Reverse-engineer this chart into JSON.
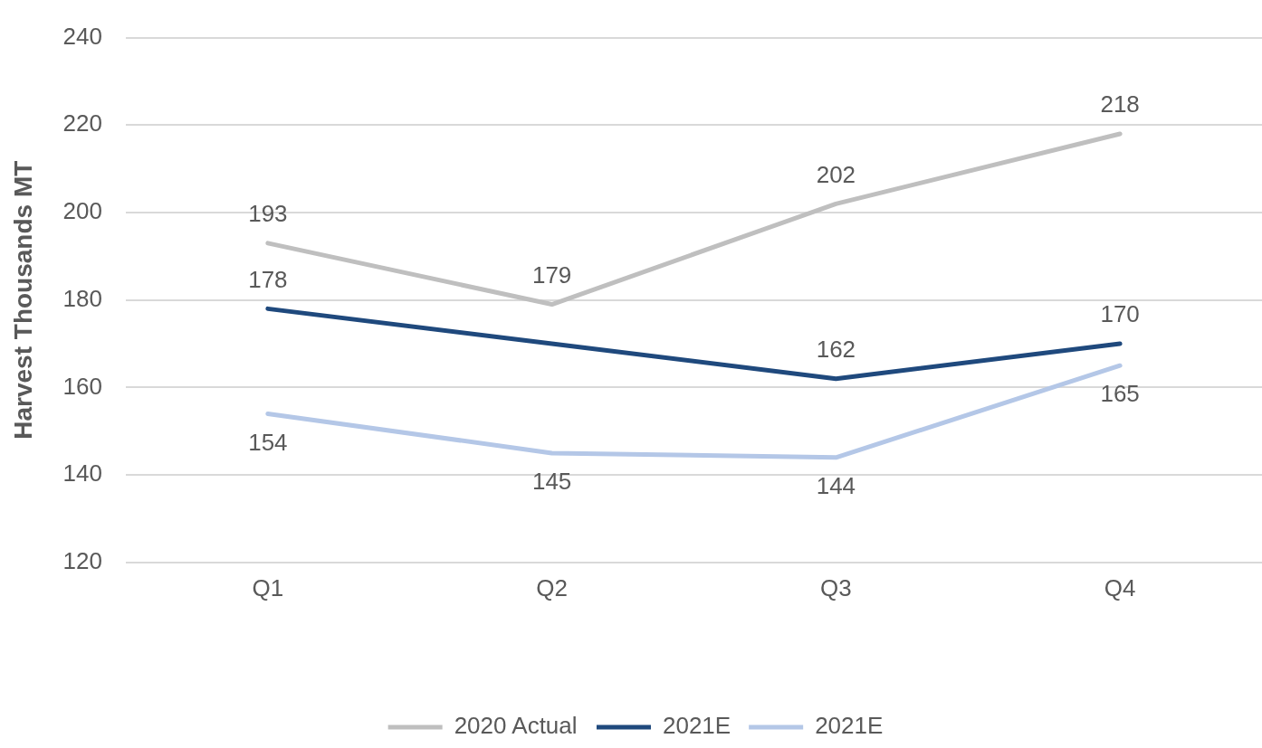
{
  "chart_data": {
    "type": "line",
    "ylabel": "Harvest Thousands MT",
    "categories": [
      "Q1",
      "Q2",
      "Q3",
      "Q4"
    ],
    "series": [
      {
        "name": "2020 Actual",
        "color": "#bfbfbf",
        "values": [
          193,
          179,
          202,
          218
        ],
        "value_labels": [
          "193",
          "179",
          "202",
          "218"
        ]
      },
      {
        "name": "2021E",
        "color": "#1f497d",
        "values": [
          178,
          170,
          162,
          170
        ],
        "value_labels": [
          "178",
          null,
          "162",
          "170"
        ]
      },
      {
        "name": "2021E",
        "color": "#b4c7e7",
        "values": [
          154,
          145,
          144,
          165
        ],
        "value_labels": [
          "154",
          "145",
          "144",
          "165"
        ]
      }
    ],
    "ylim": [
      120,
      240
    ],
    "yticks": [
      120,
      140,
      160,
      180,
      200,
      220,
      240
    ],
    "grid": "y",
    "legend": "bottom",
    "marker": "none",
    "line_style": "solid"
  }
}
